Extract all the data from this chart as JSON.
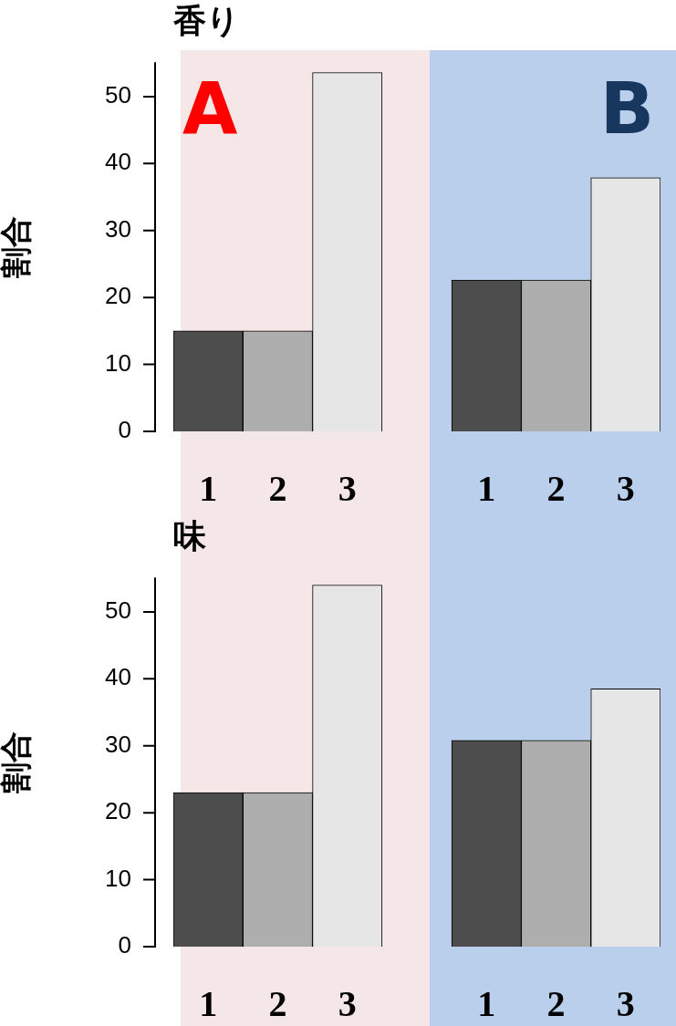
{
  "chart_data": [
    {
      "type": "bar",
      "title": "香り",
      "ylabel": "割合",
      "categories": [
        "1",
        "2",
        "3",
        null,
        "1",
        "2",
        "3"
      ],
      "values": [
        15,
        15,
        53.6,
        null,
        22.6,
        22.6,
        37.9
      ],
      "colors": [
        "#4d4d4d",
        "#aeaeae",
        "#e6e6e6",
        null,
        "#4d4d4d",
        "#aeaeae",
        "#e6e6e6"
      ],
      "ylim": [
        0,
        55
      ],
      "yticks": [
        0,
        10,
        20,
        30,
        40,
        50
      ],
      "annotations": [
        "A",
        "B"
      ]
    },
    {
      "type": "bar",
      "title": "味",
      "ylabel": "割合",
      "categories": [
        "1",
        "2",
        "3",
        null,
        "1",
        "2",
        "3"
      ],
      "values": [
        23,
        23,
        54,
        null,
        30.8,
        30.8,
        38.5
      ],
      "colors": [
        "#4d4d4d",
        "#aeaeae",
        "#e6e6e6",
        null,
        "#4d4d4d",
        "#aeaeae",
        "#e6e6e6"
      ],
      "ylim": [
        0,
        55
      ],
      "yticks": [
        0,
        10,
        20,
        30,
        40,
        50
      ]
    }
  ]
}
